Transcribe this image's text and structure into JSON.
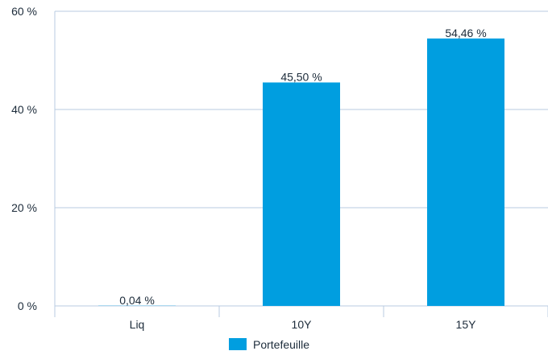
{
  "chart_data": {
    "type": "bar",
    "categories": [
      "Liq",
      "10Y",
      "15Y"
    ],
    "series": [
      {
        "name": "Portefeuille",
        "values": [
          0.04,
          45.5,
          54.46
        ],
        "labels": [
          "0,04 %",
          "45,50 %",
          "54,46 %"
        ],
        "color": "#009ee0"
      }
    ],
    "ylim": [
      0,
      60
    ],
    "yticks": [
      0,
      20,
      40,
      60
    ],
    "ytick_labels": [
      "0 %",
      "20 %",
      "40 %",
      "60 %"
    ],
    "grid": true,
    "legend_position": "bottom-center",
    "colors": {
      "gridline": "#b8cbe0",
      "text": "#1c2b3a"
    }
  }
}
